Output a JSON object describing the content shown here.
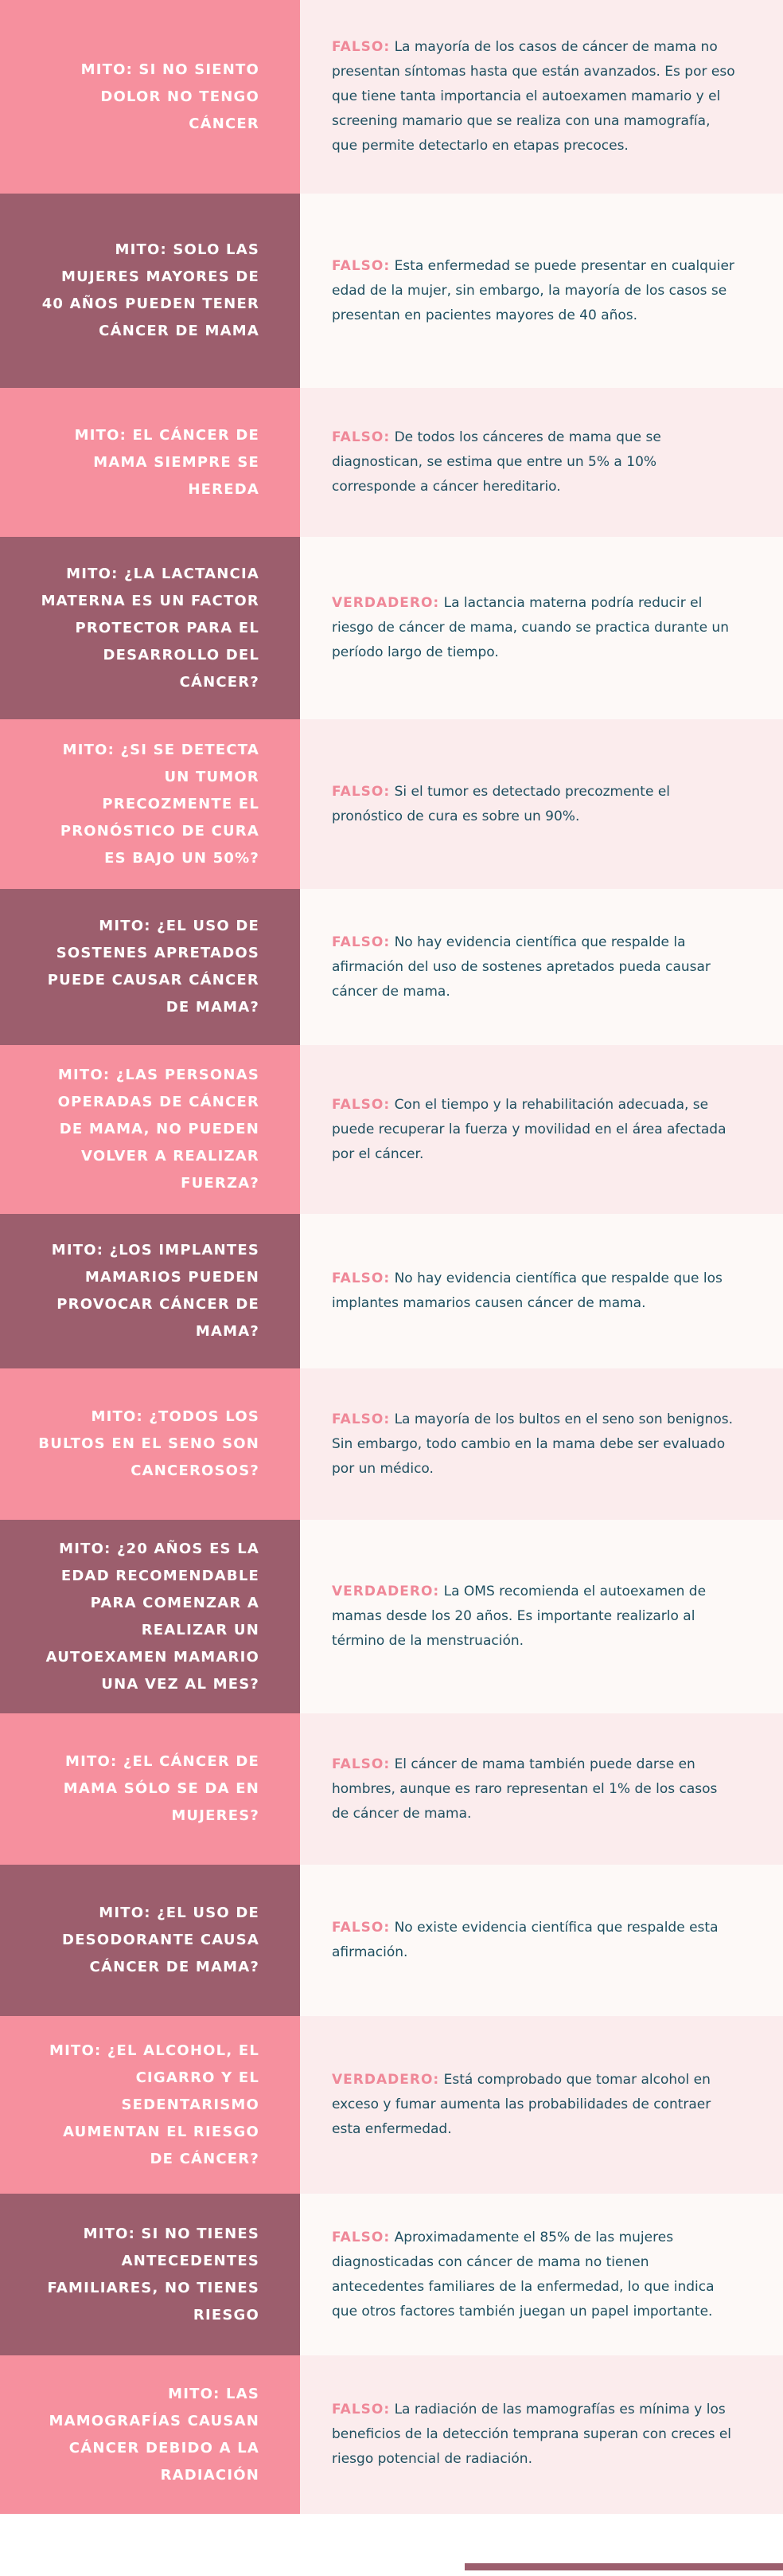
{
  "rows": [
    {
      "myth": "MITO: SI NO SIENTO DOLOR NO TENGO CÁNCER",
      "label": "FALSO:",
      "text": "La mayoría de los casos de cáncer de mama no presentan síntomas hasta que están avanzados. Es por eso que tiene tanta importancia el autoexamen mamario y el screening mamario que se realiza con una mamografía, que permite detectarlo en etapas precoces."
    },
    {
      "myth": "MITO: SOLO LAS MUJERES MAYORES DE 40 AÑOS PUEDEN TENER CÁNCER DE MAMA",
      "label": "FALSO:",
      "text": "Esta enfermedad se puede presentar en cualquier edad de la mujer, sin embargo, la mayoría de los casos se presentan en pacientes mayores de 40 años."
    },
    {
      "myth": "MITO: EL CÁNCER DE MAMA SIEMPRE SE HEREDA",
      "label": "FALSO:",
      "text": "De todos los cánceres de mama que se diagnostican, se estima que entre un 5% a 10% corresponde a cáncer hereditario."
    },
    {
      "myth": "MITO: ¿LA LACTANCIA MATERNA ES UN FACTOR PROTECTOR PARA EL DESARROLLO DEL CÁNCER?",
      "label": "VERDADERO:",
      "text": "La lactancia materna podría reducir el riesgo de cáncer de mama, cuando se practica durante un período largo de tiempo."
    },
    {
      "myth": "MITO: ¿SI SE DETECTA UN TUMOR PRECOZMENTE EL PRONÓSTICO DE CURA ES BAJO UN 50%?",
      "label": "FALSO:",
      "text": "Si el tumor es detectado precozmente el pronóstico de cura es sobre un 90%."
    },
    {
      "myth": "MITO: ¿EL USO DE SOSTENES APRETADOS PUEDE CAUSAR CÁNCER DE MAMA?",
      "label": "FALSO:",
      "text": "No hay evidencia científica que respalde la afirmación del uso de sostenes apretados pueda causar cáncer de mama."
    },
    {
      "myth": "MITO: ¿LAS PERSONAS OPERADAS DE CÁNCER DE MAMA, NO PUEDEN VOLVER A REALIZAR FUERZA?",
      "label": "FALSO:",
      "text": "Con el tiempo y la rehabilitación adecuada, se puede recuperar la fuerza y movilidad en el área afectada por el cáncer."
    },
    {
      "myth": "MITO: ¿LOS IMPLANTES MAMARIOS PUEDEN PROVOCAR CÁNCER DE MAMA?",
      "label": "FALSO:",
      "text": "No hay evidencia científica que respalde que los implantes mamarios causen cáncer de mama."
    },
    {
      "myth": "MITO: ¿TODOS LOS BULTOS EN EL SENO SON CANCEROSOS?",
      "label": "FALSO:",
      "text": "La mayoría de los bultos en el seno son benignos. Sin embargo, todo cambio en la mama debe ser evaluado por un médico."
    },
    {
      "myth": "MITO: ¿20 AÑOS ES LA EDAD RECOMENDABLE PARA COMENZAR A REALIZAR UN AUTOEXAMEN MAMARIO UNA VEZ AL MES?",
      "label": "VERDADERO:",
      "text": "La OMS recomienda el autoexamen de mamas desde los 20 años. Es importante realizarlo al término de la menstruación."
    },
    {
      "myth": "MITO: ¿EL CÁNCER DE MAMA SÓLO SE DA EN MUJERES?",
      "label": "FALSO:",
      "text": "El cáncer de mama también puede darse en hombres, aunque es raro representan el 1% de los casos de cáncer de mama."
    },
    {
      "myth": "MITO: ¿EL USO DE DESODORANTE CAUSA CÁNCER DE MAMA?",
      "label": "FALSO:",
      "text": "No existe evidencia científica que respalde esta afirmación."
    },
    {
      "myth": "MITO: ¿EL ALCOHOL, EL CIGARRO Y EL SEDENTARISMO AUMENTAN EL RIESGO DE CÁNCER?",
      "label": "VERDADERO:",
      "text": "Está comprobado que tomar alcohol en exceso y fumar aumenta las probabilidades de contraer esta enfermedad."
    },
    {
      "myth": "MITO: SI NO TIENES ANTECEDENTES FAMILIARES, NO TIENES RIESGO",
      "label": "FALSO:",
      "text": "Aproximadamente el 85% de las mujeres diagnosticadas con cáncer de mama no tienen antecedentes familiares de la enfermedad, lo que indica que otros factores también juegan un papel importante."
    },
    {
      "myth": "MITO: LAS MAMOGRAFÍAS CAUSAN CÁNCER DEBIDO A LA RADIACIÓN",
      "label": "FALSO:",
      "text": "La radiación de las mamografías es mínima y los beneficios de la detección temprana superan con creces el riesgo potencial de radiación."
    }
  ]
}
